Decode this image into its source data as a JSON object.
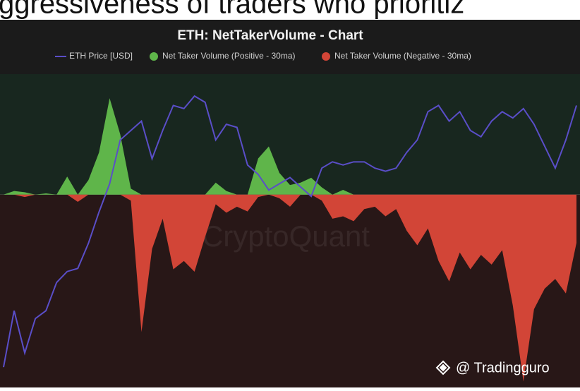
{
  "page": {
    "caption": "ggressiveness of traders who prioritiz",
    "credit": "@ Tradingguro"
  },
  "chart_data": {
    "type": "area",
    "title": "ETH: NetTakerVolume - Chart",
    "watermark": "CryptoQuant",
    "categories": [
      null,
      null,
      null,
      null,
      null,
      null,
      null,
      null,
      null,
      null,
      null,
      null,
      null,
      null,
      null,
      null,
      null,
      null,
      null,
      null,
      null,
      null,
      null,
      null,
      null,
      null,
      null,
      null,
      null,
      null,
      null,
      null,
      null,
      null,
      null,
      null,
      null,
      null,
      null,
      null,
      null,
      null,
      null,
      null,
      null,
      null,
      null,
      null,
      null,
      null,
      null,
      null,
      null,
      null,
      null
    ],
    "ylim": [
      -160,
      100
    ],
    "y2lim": [
      0,
      100
    ],
    "series": [
      {
        "name": "ETH Price [USD]",
        "type": "line",
        "axis": "y2",
        "color": "#5a4ec8",
        "values": [
          6.5,
          24.5,
          11,
          22,
          24.5,
          33.5,
          37,
          38,
          46,
          56,
          65,
          79,
          82,
          85,
          73,
          82,
          90,
          89,
          93,
          91,
          79,
          84,
          83,
          71,
          68,
          63,
          65,
          67,
          64,
          61,
          70,
          72,
          71,
          72,
          72,
          70,
          69,
          70,
          75,
          79,
          88,
          90,
          85,
          88,
          82,
          80,
          85,
          88,
          86,
          89,
          84,
          77,
          70,
          79,
          90
        ]
      },
      {
        "name": "Net Taker Volume (Positive - 30ma)",
        "color": "#5fb54a",
        "values": [
          0,
          3,
          2,
          0,
          1,
          0,
          15,
          0,
          12,
          35,
          80,
          50,
          5,
          0,
          0,
          0,
          0,
          0,
          0,
          0,
          10,
          3,
          0,
          0,
          30,
          40,
          18,
          8,
          10,
          14,
          6,
          0,
          4,
          0,
          0,
          0,
          0,
          0,
          0,
          0,
          0,
          0,
          0,
          0,
          0,
          0,
          0,
          0,
          0,
          0,
          0,
          0,
          0,
          0,
          0
        ]
      },
      {
        "name": "Net Taker Volume (Negative - 30ma)",
        "color": "#d24537",
        "values": [
          0,
          0,
          -2,
          0,
          0,
          0,
          0,
          -6,
          0,
          0,
          0,
          0,
          -5,
          -114,
          -45,
          -20,
          -62,
          -55,
          -64,
          -35,
          -8,
          -15,
          -10,
          -14,
          -2,
          0,
          -3,
          -10,
          0,
          0,
          -5,
          -20,
          -18,
          -22,
          -12,
          -10,
          -18,
          -12,
          -30,
          -42,
          -28,
          -55,
          -72,
          -48,
          -62,
          -50,
          -58,
          -46,
          -92,
          -155,
          -95,
          -78,
          -70,
          -82,
          -40
        ]
      }
    ]
  }
}
